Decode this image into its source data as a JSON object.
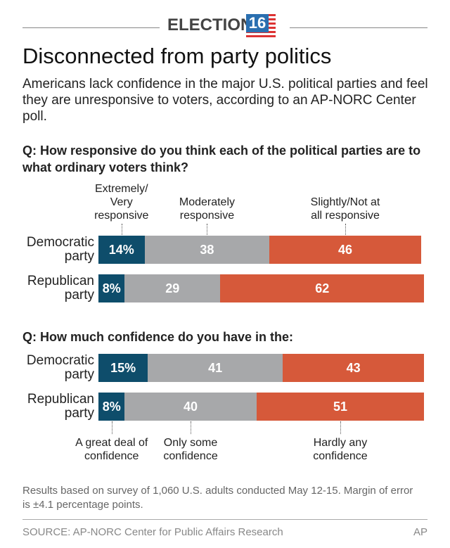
{
  "logo": "ELECTION",
  "logo_number": "16",
  "title": "Disconnected from party politics",
  "subtitle": "Americans lack confidence in the major U.S. political parties and feel they are unresponsive to voters, according to an AP-NORC Center poll.",
  "chart_data": [
    {
      "type": "stacked-bar",
      "title": "Q: How responsive do you think each of the political parties are to what ordinary voters think?",
      "categories": [
        "Democratic party",
        "Republican party"
      ],
      "xlim": [
        0,
        100
      ],
      "legend": "top",
      "series": [
        {
          "name": "Extremely/ Very responsive",
          "color": "#0e4d6b",
          "values": [
            14,
            8
          ],
          "value_labels": [
            "14%",
            "8%"
          ]
        },
        {
          "name": "Moderately responsive",
          "color": "#a7a8aa",
          "values": [
            38,
            29
          ]
        },
        {
          "name": "Slightly/Not at all responsive",
          "color": "#d6593a",
          "values": [
            46,
            62
          ]
        }
      ]
    },
    {
      "type": "stacked-bar",
      "title": "Q: How much confidence do you have in the:",
      "categories": [
        "Democratic party",
        "Republican party"
      ],
      "xlim": [
        0,
        100
      ],
      "legend": "bottom",
      "series": [
        {
          "name": "A great deal of confidence",
          "color": "#0e4d6b",
          "values": [
            15,
            8
          ],
          "value_labels": [
            "15%",
            "8%"
          ]
        },
        {
          "name": "Only some confidence",
          "color": "#a7a8aa",
          "values": [
            41,
            40
          ]
        },
        {
          "name": "Hardly any confidence",
          "color": "#d6593a",
          "values": [
            43,
            51
          ]
        }
      ]
    }
  ],
  "notes": "Results based on survey of 1,060 U.S. adults conducted May 12-15. Margin of error is ±4.1 percentage points.",
  "source": "SOURCE: AP-NORC Center for Public Affairs Research",
  "credit": "AP"
}
